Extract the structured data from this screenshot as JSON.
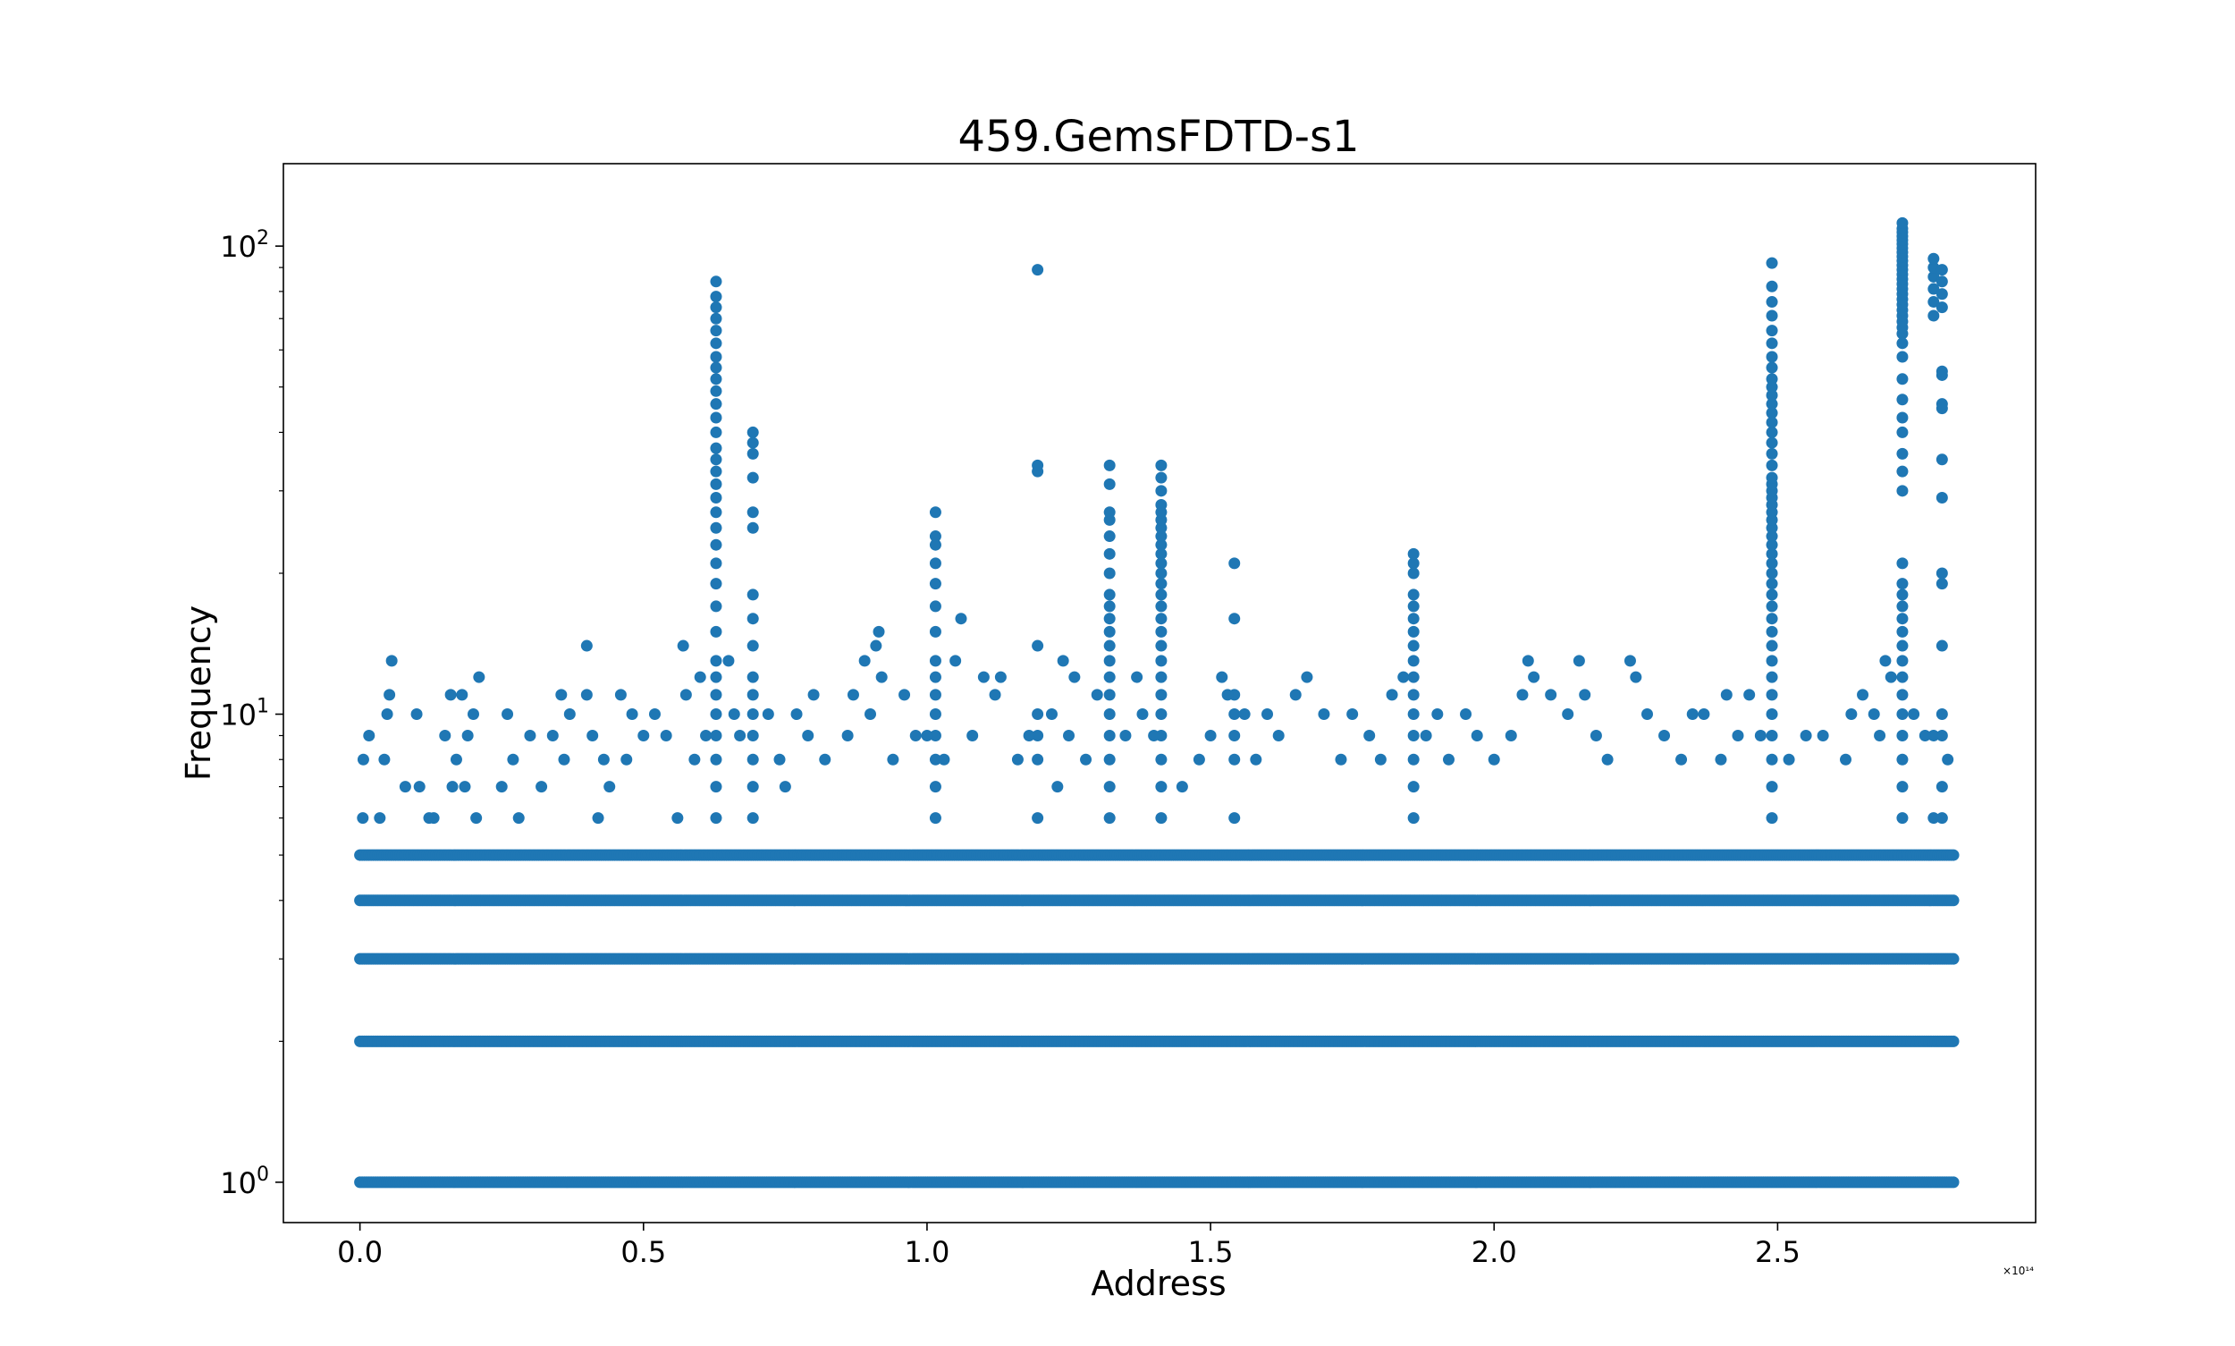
{
  "chart_data": {
    "type": "scatter",
    "title": "459.GemsFDTD-s1",
    "xlabel": "Address",
    "ylabel": "Frequency",
    "x_scale_label": "×10¹⁴",
    "xlim": [
      -0.135,
      2.955
    ],
    "ylim": [
      0.82,
      150
    ],
    "y_scale": "log",
    "x_ticks": [
      {
        "value": 0.0,
        "label": "0.0"
      },
      {
        "value": 0.5,
        "label": "0.5"
      },
      {
        "value": 1.0,
        "label": "1.0"
      },
      {
        "value": 1.5,
        "label": "1.5"
      },
      {
        "value": 2.0,
        "label": "2.0"
      },
      {
        "value": 2.5,
        "label": "2.5"
      }
    ],
    "y_ticks": [
      {
        "value": 1,
        "base": "10",
        "exp": "0"
      },
      {
        "value": 10,
        "base": "10",
        "exp": "1"
      },
      {
        "value": 100,
        "base": "10",
        "exp": "2"
      }
    ],
    "grid": false,
    "marker_color": "#1f77b4",
    "bands": [
      {
        "y": 1,
        "x_start": 0.0,
        "x_end": 2.81
      },
      {
        "y": 2,
        "x_start": 0.0,
        "x_end": 2.81
      },
      {
        "y": 3,
        "x_start": 0.0,
        "x_end": 2.81
      },
      {
        "y": 4,
        "x_start": 0.0,
        "x_end": 2.81
      },
      {
        "y": 5,
        "x_start": 0.0,
        "x_end": 2.81
      }
    ],
    "columns": [
      {
        "x": 0.628,
        "y": [
          6,
          7,
          8,
          9,
          10,
          11,
          12,
          13,
          15,
          17,
          19,
          21,
          23,
          25,
          27,
          29,
          31,
          33,
          35,
          37,
          40,
          43,
          46,
          49,
          52,
          55,
          58,
          62,
          66,
          70,
          74,
          78,
          84
        ]
      },
      {
        "x": 0.693,
        "y": [
          6,
          7,
          8,
          9,
          10,
          11,
          12,
          14,
          16,
          18,
          25,
          27,
          32,
          36,
          38,
          40
        ]
      },
      {
        "x": 1.015,
        "y": [
          6,
          7,
          8,
          9,
          10,
          11,
          12,
          13,
          15,
          17,
          19,
          21,
          23,
          24,
          27
        ]
      },
      {
        "x": 1.195,
        "y": [
          6,
          8,
          9,
          10,
          14,
          33,
          34,
          89
        ]
      },
      {
        "x": 1.322,
        "y": [
          6,
          7,
          8,
          9,
          10,
          11,
          12,
          13,
          14,
          15,
          16,
          17,
          18,
          20,
          22,
          24,
          26,
          27,
          31,
          34
        ]
      },
      {
        "x": 1.413,
        "y": [
          6,
          7,
          8,
          9,
          10,
          11,
          12,
          13,
          14,
          15,
          16,
          17,
          18,
          19,
          20,
          21,
          22,
          23,
          24,
          25,
          26,
          27,
          28,
          30,
          32,
          34
        ]
      },
      {
        "x": 1.542,
        "y": [
          6,
          8,
          9,
          10,
          11,
          16,
          21
        ]
      },
      {
        "x": 1.858,
        "y": [
          6,
          7,
          8,
          9,
          10,
          11,
          12,
          13,
          14,
          15,
          16,
          17,
          18,
          20,
          21,
          22
        ]
      },
      {
        "x": 2.49,
        "y": [
          6,
          7,
          8,
          9,
          10,
          11,
          12,
          13,
          14,
          15,
          16,
          17,
          18,
          19,
          20,
          21,
          22,
          23,
          24,
          25,
          26,
          27,
          28,
          29,
          30,
          31,
          32,
          34,
          36,
          38,
          40,
          42,
          44,
          46,
          48,
          50,
          52,
          55,
          58,
          62,
          66,
          71,
          76,
          82,
          92
        ]
      },
      {
        "x": 2.72,
        "y": [
          6,
          7,
          8,
          9,
          10,
          11,
          12,
          13,
          14,
          15,
          16,
          17,
          18,
          19,
          21,
          30,
          33,
          36,
          40,
          43,
          47,
          52,
          58,
          62,
          65,
          67,
          69,
          71,
          73,
          75,
          77,
          79,
          81,
          83,
          85,
          87,
          89,
          91,
          93,
          95,
          97,
          99,
          101,
          103,
          105,
          107,
          109,
          112
        ]
      },
      {
        "x": 2.775,
        "y": [
          6,
          9,
          71,
          76,
          81,
          86,
          90,
          94
        ]
      },
      {
        "x": 2.79,
        "y": [
          6,
          7,
          9,
          10,
          14,
          19,
          20,
          29,
          35,
          45,
          46,
          53,
          54,
          74,
          79,
          84,
          89
        ]
      }
    ],
    "scatter_points": [
      [
        0.005,
        6
      ],
      [
        0.006,
        8
      ],
      [
        0.016,
        9
      ],
      [
        0.035,
        6
      ],
      [
        0.043,
        8
      ],
      [
        0.048,
        10
      ],
      [
        0.052,
        11
      ],
      [
        0.056,
        13
      ],
      [
        0.08,
        7
      ],
      [
        0.1,
        10
      ],
      [
        0.105,
        7
      ],
      [
        0.122,
        6
      ],
      [
        0.13,
        6
      ],
      [
        0.15,
        9
      ],
      [
        0.16,
        11
      ],
      [
        0.163,
        7
      ],
      [
        0.17,
        8
      ],
      [
        0.18,
        11
      ],
      [
        0.185,
        7
      ],
      [
        0.19,
        9
      ],
      [
        0.2,
        10
      ],
      [
        0.21,
        12
      ],
      [
        0.205,
        6
      ],
      [
        0.25,
        7
      ],
      [
        0.26,
        10
      ],
      [
        0.27,
        8
      ],
      [
        0.28,
        6
      ],
      [
        0.3,
        9
      ],
      [
        0.32,
        7
      ],
      [
        0.34,
        9
      ],
      [
        0.355,
        11
      ],
      [
        0.36,
        8
      ],
      [
        0.37,
        10
      ],
      [
        0.4,
        14
      ],
      [
        0.4,
        11
      ],
      [
        0.41,
        9
      ],
      [
        0.42,
        6
      ],
      [
        0.43,
        8
      ],
      [
        0.44,
        7
      ],
      [
        0.46,
        11
      ],
      [
        0.47,
        8
      ],
      [
        0.48,
        10
      ],
      [
        0.5,
        9
      ],
      [
        0.52,
        10
      ],
      [
        0.54,
        9
      ],
      [
        0.56,
        6
      ],
      [
        0.57,
        14
      ],
      [
        0.575,
        11
      ],
      [
        0.59,
        8
      ],
      [
        0.6,
        12
      ],
      [
        0.61,
        9
      ],
      [
        0.65,
        13
      ],
      [
        0.66,
        10
      ],
      [
        0.67,
        9
      ],
      [
        0.72,
        10
      ],
      [
        0.74,
        8
      ],
      [
        0.75,
        7
      ],
      [
        0.77,
        10
      ],
      [
        0.79,
        9
      ],
      [
        0.8,
        11
      ],
      [
        0.82,
        8
      ],
      [
        0.86,
        9
      ],
      [
        0.87,
        11
      ],
      [
        0.89,
        13
      ],
      [
        0.9,
        10
      ],
      [
        0.91,
        14
      ],
      [
        0.915,
        15
      ],
      [
        0.92,
        12
      ],
      [
        0.94,
        8
      ],
      [
        0.96,
        11
      ],
      [
        0.98,
        9
      ],
      [
        1.0,
        9
      ],
      [
        1.03,
        8
      ],
      [
        1.05,
        13
      ],
      [
        1.06,
        16
      ],
      [
        1.08,
        9
      ],
      [
        1.1,
        12
      ],
      [
        1.12,
        11
      ],
      [
        1.13,
        12
      ],
      [
        1.16,
        8
      ],
      [
        1.18,
        9
      ],
      [
        1.22,
        10
      ],
      [
        1.23,
        7
      ],
      [
        1.24,
        13
      ],
      [
        1.25,
        9
      ],
      [
        1.26,
        12
      ],
      [
        1.28,
        8
      ],
      [
        1.3,
        11
      ],
      [
        1.35,
        9
      ],
      [
        1.37,
        12
      ],
      [
        1.38,
        10
      ],
      [
        1.4,
        9
      ],
      [
        1.45,
        7
      ],
      [
        1.48,
        8
      ],
      [
        1.5,
        9
      ],
      [
        1.52,
        12
      ],
      [
        1.53,
        11
      ],
      [
        1.56,
        10
      ],
      [
        1.58,
        8
      ],
      [
        1.6,
        10
      ],
      [
        1.62,
        9
      ],
      [
        1.65,
        11
      ],
      [
        1.67,
        12
      ],
      [
        1.7,
        10
      ],
      [
        1.73,
        8
      ],
      [
        1.75,
        10
      ],
      [
        1.78,
        9
      ],
      [
        1.8,
        8
      ],
      [
        1.82,
        11
      ],
      [
        1.84,
        12
      ],
      [
        1.88,
        9
      ],
      [
        1.9,
        10
      ],
      [
        1.92,
        8
      ],
      [
        1.95,
        10
      ],
      [
        1.97,
        9
      ],
      [
        2.0,
        8
      ],
      [
        2.03,
        9
      ],
      [
        2.05,
        11
      ],
      [
        2.06,
        13
      ],
      [
        2.07,
        12
      ],
      [
        2.1,
        11
      ],
      [
        2.13,
        10
      ],
      [
        2.15,
        13
      ],
      [
        2.16,
        11
      ],
      [
        2.18,
        9
      ],
      [
        2.2,
        8
      ],
      [
        2.24,
        13
      ],
      [
        2.25,
        12
      ],
      [
        2.27,
        10
      ],
      [
        2.3,
        9
      ],
      [
        2.33,
        8
      ],
      [
        2.35,
        10
      ],
      [
        2.37,
        10
      ],
      [
        2.4,
        8
      ],
      [
        2.41,
        11
      ],
      [
        2.43,
        9
      ],
      [
        2.45,
        11
      ],
      [
        2.47,
        9
      ],
      [
        2.52,
        8
      ],
      [
        2.55,
        9
      ],
      [
        2.58,
        9
      ],
      [
        2.62,
        8
      ],
      [
        2.63,
        10
      ],
      [
        2.65,
        11
      ],
      [
        2.67,
        10
      ],
      [
        2.68,
        9
      ],
      [
        2.69,
        13
      ],
      [
        2.7,
        12
      ],
      [
        2.74,
        10
      ],
      [
        2.76,
        9
      ],
      [
        2.8,
        8
      ]
    ]
  }
}
